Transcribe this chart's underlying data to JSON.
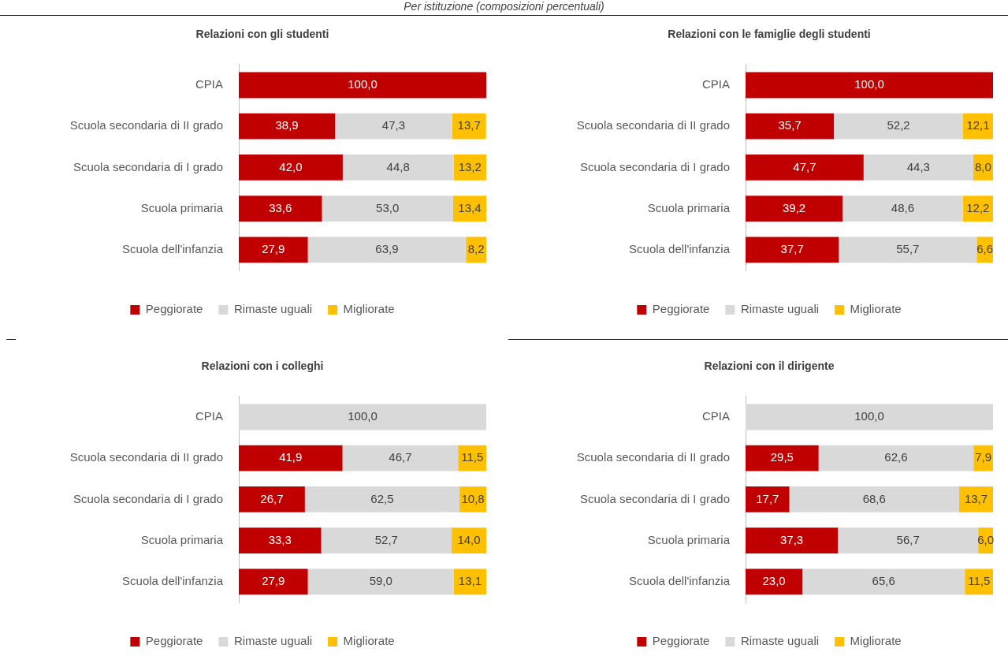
{
  "chart_data": [
    {
      "type": "bar",
      "title": "Relazioni con gli studenti",
      "subtitle": "Per istituzione (composizioni percentuali)",
      "orientation": "horizontal",
      "stacked": true,
      "legend": "bottom",
      "tick_labels": "y",
      "xlim": [
        0,
        100
      ],
      "categories": [
        "CPIA",
        "Scuola secondaria di II grado",
        "Scuola secondaria di I grado",
        "Scuola primaria",
        "Scuola dell'infanzia"
      ],
      "series": [
        {
          "name": "Peggiorate",
          "color": "#c00000",
          "values": [
            100.0,
            38.9,
            42.0,
            33.6,
            27.9
          ],
          "value_labels": [
            "100,0",
            "38,9",
            "42,0",
            "33,6",
            "27,9"
          ]
        },
        {
          "name": "Rimaste uguali",
          "color": "#d9d9d9",
          "values": [
            null,
            47.3,
            44.8,
            53.0,
            63.9
          ],
          "value_labels": [
            null,
            "47,3",
            "44,8",
            "53,0",
            "63,9"
          ]
        },
        {
          "name": "Migliorate",
          "color": "#ffc000",
          "values": [
            null,
            13.7,
            13.2,
            13.4,
            8.2
          ],
          "value_labels": [
            null,
            "13,7",
            "13,2",
            "13,4",
            "8,2"
          ]
        }
      ]
    },
    {
      "type": "bar",
      "title": "Relazioni con le famiglie degli studenti",
      "orientation": "horizontal",
      "stacked": true,
      "legend": "bottom",
      "tick_labels": "y",
      "xlim": [
        0,
        100
      ],
      "categories": [
        "CPIA",
        "Scuola secondaria di II grado",
        "Scuola secondaria di I grado",
        "Scuola primaria",
        "Scuola dell'infanzia"
      ],
      "series": [
        {
          "name": "Peggiorate",
          "color": "#c00000",
          "values": [
            100.0,
            35.7,
            47.7,
            39.2,
            37.7
          ],
          "value_labels": [
            "100,0",
            "35,7",
            "47,7",
            "39,2",
            "37,7"
          ]
        },
        {
          "name": "Rimaste uguali",
          "color": "#d9d9d9",
          "values": [
            null,
            52.2,
            44.3,
            48.6,
            55.7
          ],
          "value_labels": [
            null,
            "52,2",
            "44,3",
            "48,6",
            "55,7"
          ]
        },
        {
          "name": "Migliorate",
          "color": "#ffc000",
          "values": [
            null,
            12.1,
            8.0,
            12.2,
            6.6
          ],
          "value_labels": [
            null,
            "12,1",
            "8,0",
            "12,2",
            "6,6"
          ]
        }
      ]
    },
    {
      "type": "bar",
      "title": "Relazioni con i colleghi",
      "orientation": "horizontal",
      "stacked": true,
      "legend": "bottom",
      "tick_labels": "y",
      "xlim": [
        0,
        100
      ],
      "categories": [
        "CPIA",
        "Scuola secondaria di II grado",
        "Scuola secondaria di I grado",
        "Scuola primaria",
        "Scuola dell'infanzia"
      ],
      "series": [
        {
          "name": "Peggiorate",
          "color": "#c00000",
          "values": [
            null,
            41.9,
            26.7,
            33.3,
            27.9
          ],
          "value_labels": [
            null,
            "41,9",
            "26,7",
            "33,3",
            "27,9"
          ]
        },
        {
          "name": "Rimaste uguali",
          "color": "#d9d9d9",
          "values": [
            100.0,
            46.7,
            62.5,
            52.7,
            59.0
          ],
          "value_labels": [
            "100,0",
            "46,7",
            "62,5",
            "52,7",
            "59,0"
          ]
        },
        {
          "name": "Migliorate",
          "color": "#ffc000",
          "values": [
            null,
            11.5,
            10.8,
            14.0,
            13.1
          ],
          "value_labels": [
            null,
            "11,5",
            "10,8",
            "14,0",
            "13,1"
          ]
        }
      ]
    },
    {
      "type": "bar",
      "title": "Relazioni con il dirigente",
      "orientation": "horizontal",
      "stacked": true,
      "legend": "bottom",
      "tick_labels": "y",
      "xlim": [
        0,
        100
      ],
      "categories": [
        "CPIA",
        "Scuola secondaria di II grado",
        "Scuola secondaria di I grado",
        "Scuola primaria",
        "Scuola dell'infanzia"
      ],
      "series": [
        {
          "name": "Peggiorate",
          "color": "#c00000",
          "values": [
            null,
            29.5,
            17.7,
            37.3,
            23.0
          ],
          "value_labels": [
            null,
            "29,5",
            "17,7",
            "37,3",
            "23,0"
          ]
        },
        {
          "name": "Rimaste uguali",
          "color": "#d9d9d9",
          "values": [
            100.0,
            62.6,
            68.6,
            56.7,
            65.6
          ],
          "value_labels": [
            "100,0",
            "62,6",
            "68,6",
            "56,7",
            "65,6"
          ]
        },
        {
          "name": "Migliorate",
          "color": "#ffc000",
          "values": [
            null,
            7.9,
            13.7,
            6.0,
            11.5
          ],
          "value_labels": [
            null,
            "7,9",
            "13,7",
            "6,0",
            "11,5"
          ]
        }
      ]
    }
  ]
}
